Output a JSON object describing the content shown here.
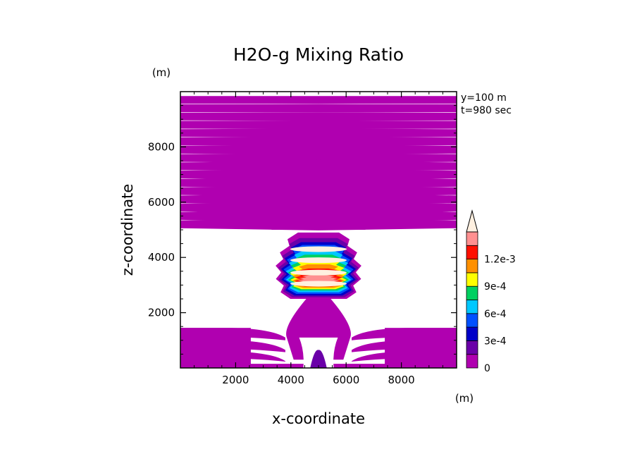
{
  "chart_data": {
    "type": "heatmap",
    "title": "H2O-g Mixing Ratio",
    "xlabel": "x-coordinate",
    "ylabel": "z-coordinate",
    "x_unit": "(m)",
    "y_unit": "(m)",
    "annotations": [
      "y=100 m",
      "t=980 sec"
    ],
    "xlim": [
      0,
      10000
    ],
    "ylim": [
      0,
      10000
    ],
    "xticks": [
      {
        "value": 2000,
        "label": "2000"
      },
      {
        "value": 4000,
        "label": "4000"
      },
      {
        "value": 6000,
        "label": "6000"
      },
      {
        "value": 8000,
        "label": "8000"
      }
    ],
    "yticks": [
      {
        "value": 2000,
        "label": "2000"
      },
      {
        "value": 4000,
        "label": "4000"
      },
      {
        "value": 6000,
        "label": "6000"
      },
      {
        "value": 8000,
        "label": "8000"
      }
    ],
    "colorbar": {
      "levels": [
        0,
        0.00015,
        0.0003,
        0.00045,
        0.0006,
        0.00075,
        0.0009,
        0.00105,
        0.0012,
        0.00135
      ],
      "colors": [
        "#b000b0",
        "#6a00a8",
        "#0000c8",
        "#0050ff",
        "#00c8ff",
        "#00d060",
        "#ffff00",
        "#ff9000",
        "#ff1000",
        "#ff9090",
        "#fff0e0"
      ],
      "labels": [
        {
          "level_index": 0,
          "text": "0"
        },
        {
          "level_index": 2,
          "text": "3e-4"
        },
        {
          "level_index": 4,
          "text": "6e-4"
        },
        {
          "level_index": 6,
          "text": "9e-4"
        },
        {
          "level_index": 8,
          "text": "1.2e-3"
        }
      ],
      "extend": "max"
    },
    "field": {
      "purple_band_centers_z": [
        9700,
        9400,
        9100,
        8800,
        8500,
        8200,
        7900,
        7600,
        7300,
        7000,
        6700,
        6400,
        6100,
        5800,
        5500,
        5200
      ],
      "moist_core": {
        "x_center": 5000,
        "z_bottom": 2500,
        "z_top": 4800,
        "x_half_width": 1200
      },
      "core_peaks_z": [
        3050,
        3450,
        3900,
        4300
      ]
    }
  }
}
